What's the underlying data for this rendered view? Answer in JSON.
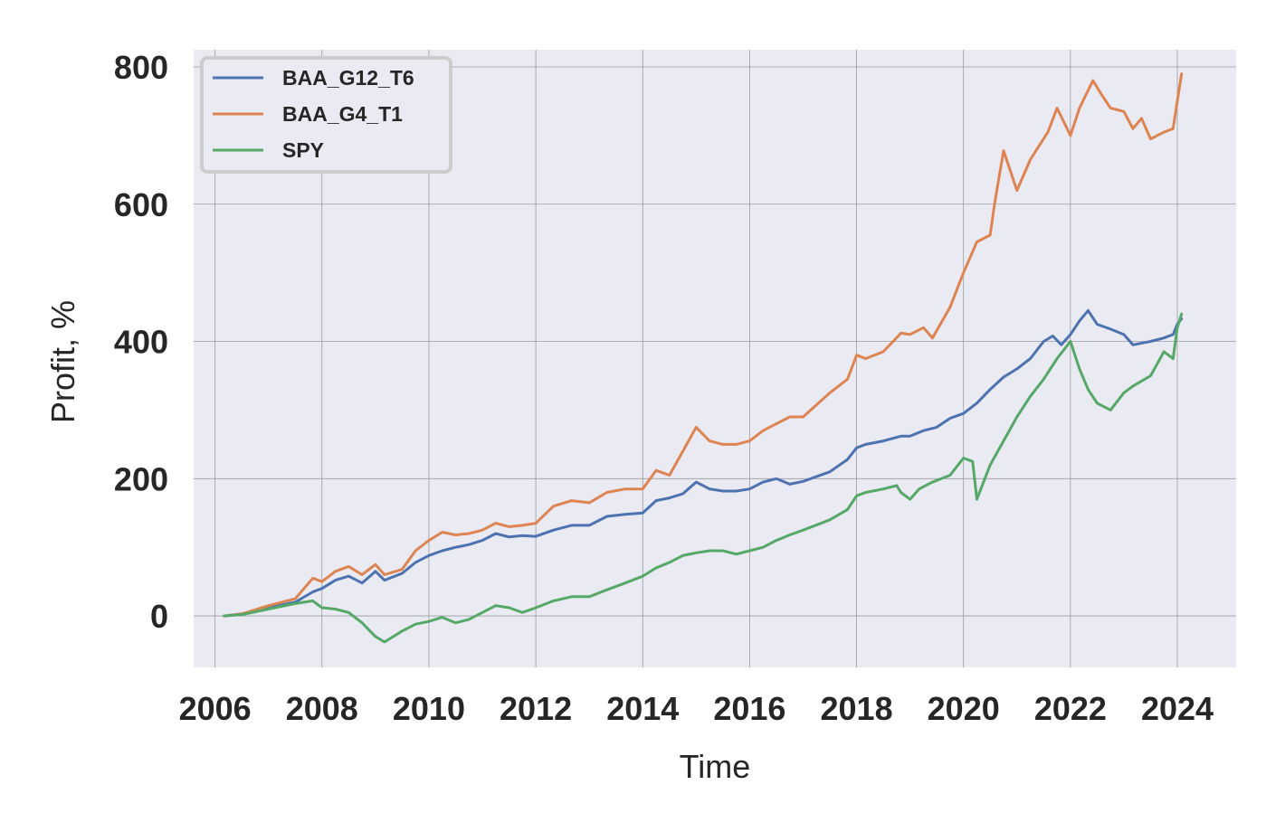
{
  "chart_data": {
    "type": "line",
    "title": "",
    "xlabel": "Time",
    "ylabel": "Profit, %",
    "xlim": [
      2005.6,
      2025.1
    ],
    "ylim": [
      -75,
      825
    ],
    "xticks": [
      "2006",
      "2008",
      "2010",
      "2012",
      "2014",
      "2016",
      "2018",
      "2020",
      "2022",
      "2024"
    ],
    "yticks": [
      "0",
      "200",
      "400",
      "600",
      "800"
    ],
    "grid": true,
    "legend_position": "top-left",
    "series": [
      {
        "name": "BAA_G12_T6",
        "color": "#4c72b0",
        "x": [
          2006.17,
          2006.5,
          2007.0,
          2007.5,
          2007.83,
          2008.0,
          2008.25,
          2008.5,
          2008.75,
          2009.0,
          2009.17,
          2009.5,
          2009.75,
          2010.0,
          2010.25,
          2010.5,
          2010.75,
          2011.0,
          2011.25,
          2011.5,
          2011.75,
          2012.0,
          2012.33,
          2012.67,
          2013.0,
          2013.33,
          2013.67,
          2014.0,
          2014.25,
          2014.5,
          2014.75,
          2015.0,
          2015.25,
          2015.5,
          2015.75,
          2016.0,
          2016.25,
          2016.5,
          2016.75,
          2017.0,
          2017.5,
          2017.83,
          2018.0,
          2018.17,
          2018.5,
          2018.83,
          2019.0,
          2019.25,
          2019.5,
          2019.75,
          2020.0,
          2020.25,
          2020.5,
          2020.75,
          2021.0,
          2021.25,
          2021.5,
          2021.67,
          2021.83,
          2022.0,
          2022.17,
          2022.33,
          2022.5,
          2022.75,
          2023.0,
          2023.17,
          2023.5,
          2023.75,
          2023.92,
          2024.0,
          2024.08
        ],
        "y": [
          0,
          3,
          12,
          20,
          35,
          40,
          52,
          58,
          48,
          65,
          52,
          62,
          78,
          88,
          95,
          100,
          104,
          110,
          120,
          115,
          117,
          116,
          125,
          132,
          132,
          145,
          148,
          150,
          168,
          172,
          178,
          195,
          185,
          182,
          182,
          185,
          195,
          200,
          192,
          196,
          210,
          228,
          245,
          250,
          255,
          262,
          262,
          270,
          275,
          288,
          295,
          310,
          330,
          348,
          360,
          375,
          400,
          408,
          395,
          410,
          430,
          445,
          425,
          418,
          410,
          395,
          400,
          405,
          410,
          425,
          433
        ]
      },
      {
        "name": "BAA_G4_T1",
        "color": "#dd8452",
        "x": [
          2006.17,
          2006.5,
          2007.0,
          2007.5,
          2007.83,
          2008.0,
          2008.25,
          2008.5,
          2008.75,
          2009.0,
          2009.17,
          2009.5,
          2009.75,
          2010.0,
          2010.25,
          2010.5,
          2010.75,
          2011.0,
          2011.25,
          2011.5,
          2011.75,
          2012.0,
          2012.33,
          2012.67,
          2013.0,
          2013.33,
          2013.67,
          2014.0,
          2014.25,
          2014.5,
          2014.75,
          2015.0,
          2015.25,
          2015.5,
          2015.75,
          2016.0,
          2016.25,
          2016.5,
          2016.75,
          2017.0,
          2017.5,
          2017.83,
          2018.0,
          2018.17,
          2018.5,
          2018.83,
          2019.0,
          2019.25,
          2019.42,
          2019.75,
          2020.0,
          2020.25,
          2020.5,
          2020.58,
          2020.75,
          2021.0,
          2021.25,
          2021.58,
          2021.75,
          2022.0,
          2022.17,
          2022.42,
          2022.58,
          2022.75,
          2023.0,
          2023.17,
          2023.33,
          2023.5,
          2023.75,
          2023.92,
          2024.0,
          2024.08
        ],
        "y": [
          0,
          3,
          15,
          25,
          55,
          50,
          65,
          72,
          60,
          75,
          60,
          68,
          95,
          110,
          122,
          118,
          120,
          125,
          135,
          130,
          132,
          135,
          160,
          168,
          165,
          180,
          185,
          185,
          212,
          205,
          240,
          275,
          255,
          250,
          250,
          255,
          270,
          280,
          290,
          290,
          325,
          345,
          380,
          375,
          385,
          412,
          410,
          420,
          405,
          450,
          500,
          545,
          555,
          600,
          678,
          620,
          665,
          705,
          740,
          700,
          740,
          780,
          760,
          740,
          735,
          710,
          725,
          695,
          705,
          710,
          750,
          790
        ]
      },
      {
        "name": "SPY",
        "color": "#55a868",
        "x": [
          2006.17,
          2006.5,
          2007.0,
          2007.5,
          2007.83,
          2008.0,
          2008.25,
          2008.5,
          2008.75,
          2009.0,
          2009.17,
          2009.5,
          2009.75,
          2010.0,
          2010.25,
          2010.5,
          2010.75,
          2011.0,
          2011.25,
          2011.5,
          2011.75,
          2012.0,
          2012.33,
          2012.67,
          2013.0,
          2013.33,
          2013.67,
          2014.0,
          2014.25,
          2014.5,
          2014.75,
          2015.0,
          2015.25,
          2015.5,
          2015.75,
          2016.0,
          2016.25,
          2016.5,
          2016.75,
          2017.0,
          2017.5,
          2017.83,
          2018.0,
          2018.17,
          2018.5,
          2018.75,
          2018.83,
          2019.0,
          2019.17,
          2019.42,
          2019.75,
          2020.0,
          2020.17,
          2020.25,
          2020.5,
          2020.75,
          2021.0,
          2021.25,
          2021.5,
          2021.75,
          2022.0,
          2022.17,
          2022.33,
          2022.5,
          2022.75,
          2023.0,
          2023.17,
          2023.5,
          2023.75,
          2023.92,
          2024.0,
          2024.08
        ],
        "y": [
          0,
          2,
          10,
          18,
          22,
          12,
          10,
          5,
          -10,
          -30,
          -38,
          -22,
          -12,
          -8,
          -2,
          -10,
          -5,
          5,
          15,
          12,
          5,
          12,
          22,
          28,
          28,
          38,
          48,
          58,
          70,
          78,
          88,
          92,
          95,
          95,
          90,
          95,
          100,
          110,
          118,
          125,
          140,
          155,
          175,
          180,
          185,
          190,
          180,
          170,
          185,
          195,
          205,
          230,
          225,
          170,
          220,
          255,
          290,
          320,
          345,
          375,
          400,
          360,
          330,
          310,
          300,
          325,
          335,
          350,
          385,
          375,
          420,
          440
        ]
      }
    ]
  }
}
